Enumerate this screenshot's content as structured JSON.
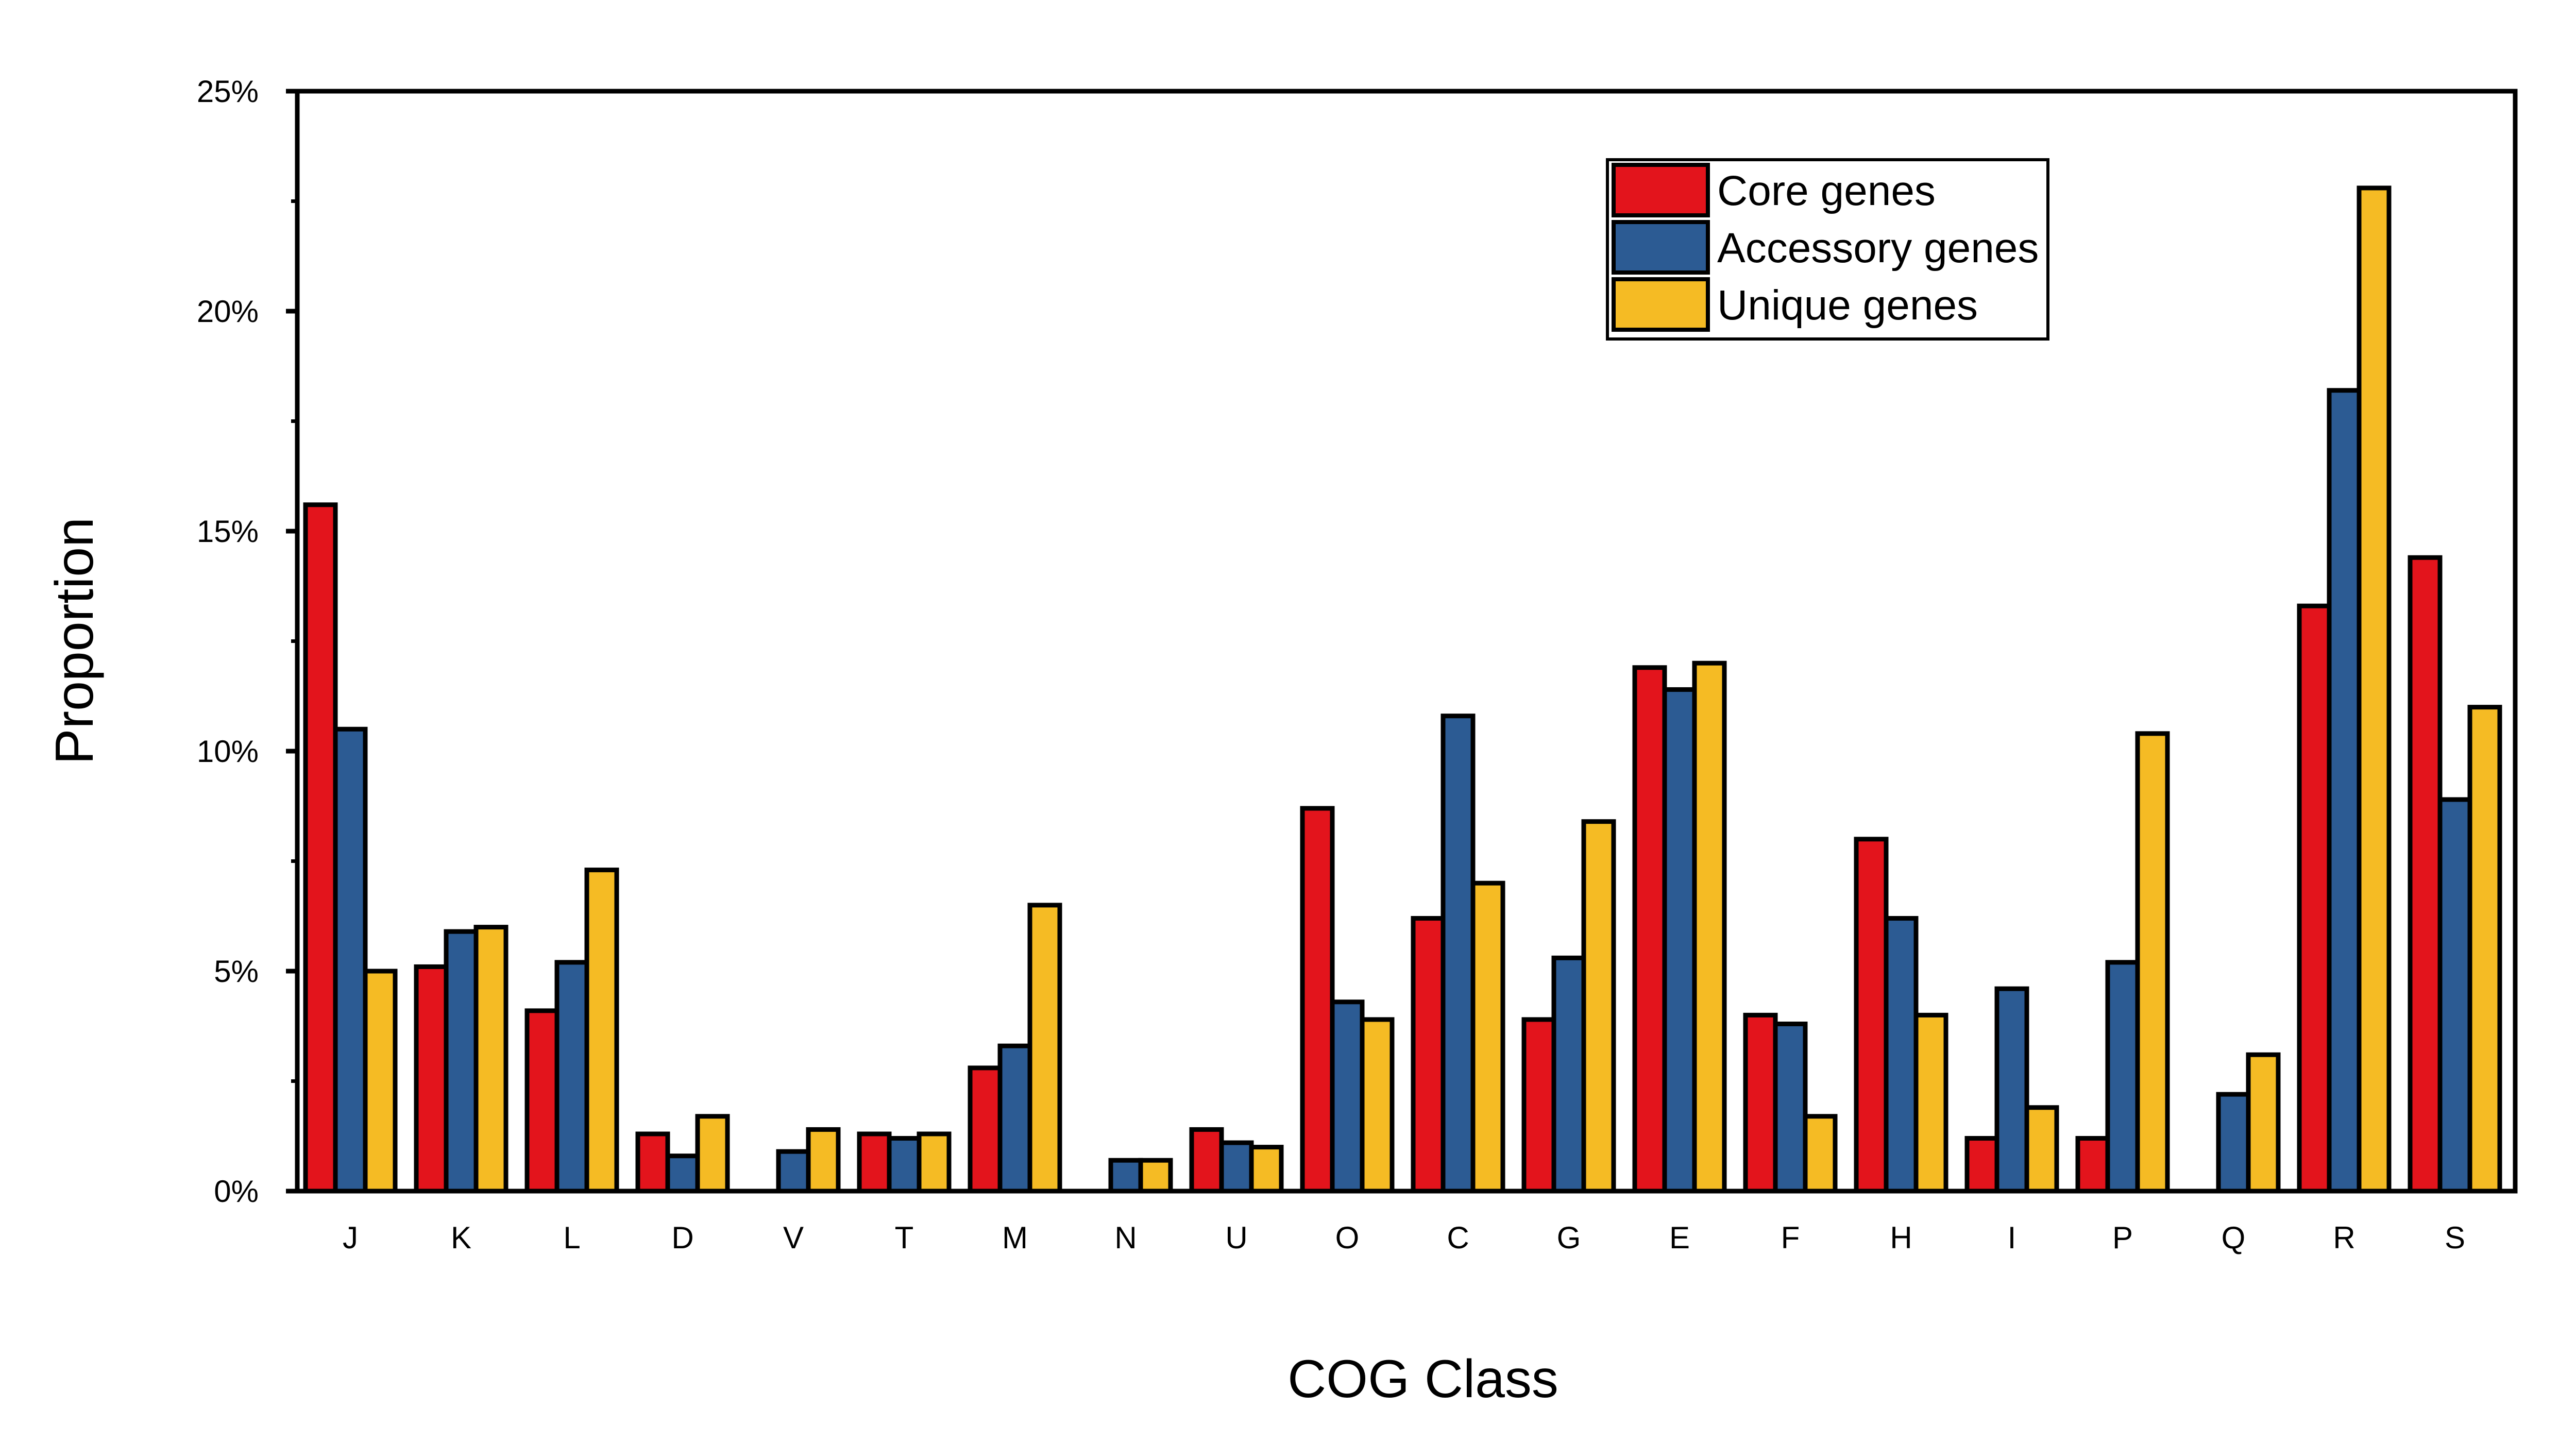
{
  "chart_data": {
    "type": "bar",
    "xlabel": "COG Class",
    "ylabel": "Proportion",
    "ylim": [
      0,
      25
    ],
    "yticks": [
      {
        "value": 0,
        "label": "0%"
      },
      {
        "value": 5,
        "label": "5%"
      },
      {
        "value": 10,
        "label": "10%"
      },
      {
        "value": 15,
        "label": "15%"
      },
      {
        "value": 20,
        "label": "20%"
      },
      {
        "value": 25,
        "label": "25%"
      }
    ],
    "categories": [
      "J",
      "K",
      "L",
      "D",
      "V",
      "T",
      "M",
      "N",
      "U",
      "O",
      "C",
      "G",
      "E",
      "F",
      "H",
      "I",
      "P",
      "Q",
      "R",
      "S"
    ],
    "series": [
      {
        "name": "Core genes",
        "color": "#e3141c",
        "values": [
          15.6,
          5.1,
          4.1,
          1.3,
          0,
          1.3,
          2.8,
          0,
          1.4,
          8.7,
          6.2,
          3.9,
          11.9,
          4.0,
          8.0,
          1.2,
          1.2,
          0,
          13.3,
          14.4
        ]
      },
      {
        "name": "Accessory genes",
        "color": "#2c5b93",
        "values": [
          10.5,
          5.9,
          5.2,
          0.8,
          0.9,
          1.2,
          3.3,
          0.7,
          1.1,
          4.3,
          10.8,
          5.3,
          11.4,
          3.8,
          6.2,
          4.6,
          5.2,
          2.2,
          18.2,
          8.9
        ]
      },
      {
        "name": "Unique genes",
        "color": "#f5bb24",
        "values": [
          5.0,
          6.0,
          7.3,
          1.7,
          1.4,
          1.3,
          6.5,
          0.7,
          1.0,
          3.9,
          7.0,
          8.4,
          12.0,
          1.7,
          4.0,
          1.9,
          10.4,
          3.1,
          22.8,
          11.0
        ]
      }
    ],
    "grid": false,
    "legend": "top-right"
  }
}
